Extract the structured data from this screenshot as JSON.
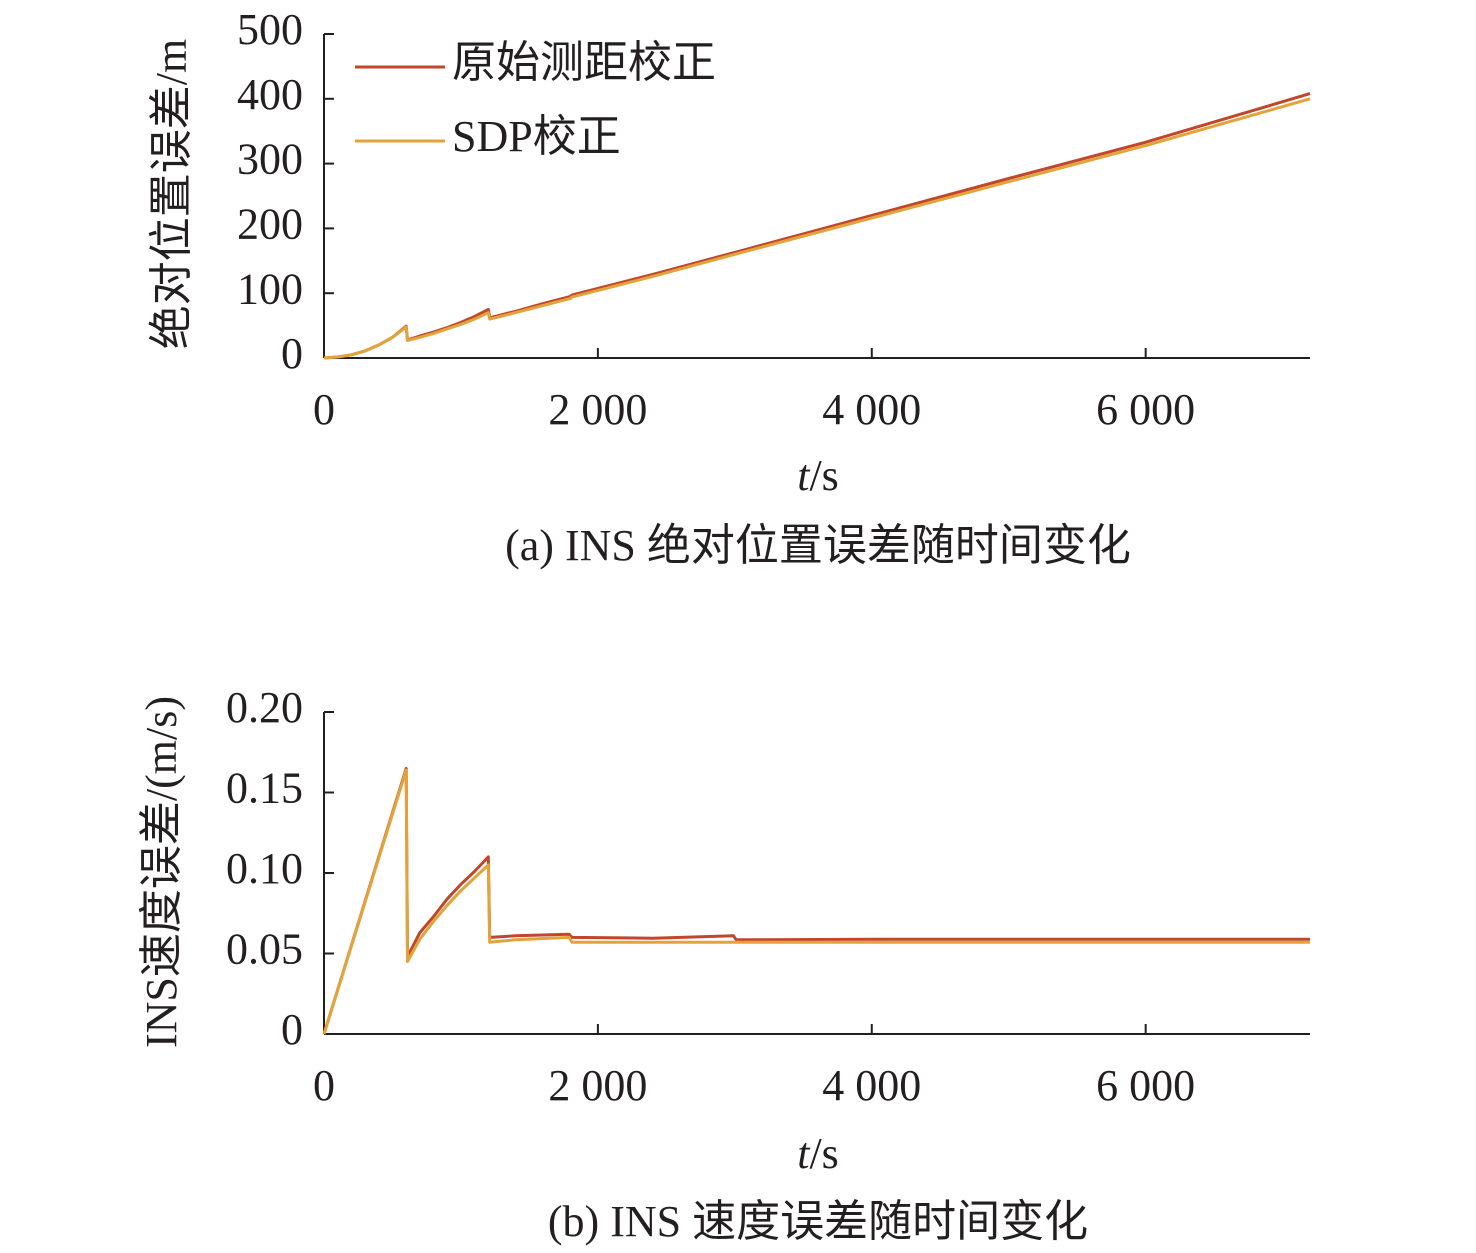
{
  "colors": {
    "raw_range_correction": "#c0462c",
    "sdp_correction": "#e3a33a",
    "axis": "#231f20"
  },
  "chart_data": [
    {
      "type": "line",
      "caption": "(a) INS 绝对位置误差随时间变化",
      "xlabel_italic": "t",
      "xlabel_unit": "/s",
      "ylabel": "绝对位置误差/m",
      "xlim": [
        0,
        7200
      ],
      "ylim": [
        0,
        500
      ],
      "xticks": [
        0,
        2000,
        4000,
        6000
      ],
      "xtick_labels": [
        "0",
        "2 000",
        "4 000",
        "6 000"
      ],
      "yticks": [
        0,
        100,
        200,
        300,
        400,
        500
      ],
      "ytick_labels": [
        "0",
        "100",
        "200",
        "300",
        "400",
        "500"
      ],
      "legend": {
        "position": "top-left",
        "entries": [
          "原始测距校正",
          "SDP校正"
        ]
      },
      "series": [
        {
          "name": "原始测距校正",
          "color": "#c0462c",
          "x": [
            0,
            100,
            200,
            300,
            400,
            500,
            600,
            610,
            700,
            800,
            900,
            1000,
            1100,
            1200,
            1210,
            1400,
            1600,
            1800,
            1810,
            2400,
            3000,
            4000,
            5000,
            6000,
            7200
          ],
          "y": [
            0,
            1.5,
            5,
            11,
            20,
            32,
            49,
            28,
            34,
            40,
            47,
            55,
            64,
            75,
            62,
            72,
            84,
            95,
            97,
            129,
            163,
            220,
            277,
            333,
            408
          ]
        },
        {
          "name": "SDP校正",
          "color": "#e3a33a",
          "x": [
            0,
            100,
            200,
            300,
            400,
            500,
            600,
            610,
            700,
            800,
            900,
            1000,
            1100,
            1200,
            1210,
            1400,
            1600,
            1800,
            1810,
            2400,
            3000,
            4000,
            5000,
            6000,
            7200
          ],
          "y": [
            0,
            1.5,
            5,
            11,
            20,
            32,
            48,
            27,
            32,
            38,
            45,
            52,
            60,
            70,
            60,
            70,
            81,
            92,
            94,
            126,
            160,
            216,
            272,
            328,
            400
          ]
        }
      ]
    },
    {
      "type": "line",
      "caption": "(b) INS 速度误差随时间变化",
      "xlabel_italic": "t",
      "xlabel_unit": "/s",
      "ylabel": "INS速度误差/(m/s)",
      "xlim": [
        0,
        7200
      ],
      "ylim": [
        0,
        0.2
      ],
      "xticks": [
        0,
        2000,
        4000,
        6000
      ],
      "xtick_labels": [
        "0",
        "2 000",
        "4 000",
        "6 000"
      ],
      "yticks": [
        0,
        0.05,
        0.1,
        0.15,
        0.2
      ],
      "ytick_labels": [
        "0",
        "0.05",
        "0.10",
        "0.15",
        "0.20"
      ],
      "series": [
        {
          "name": "原始测距校正",
          "color": "#c0462c",
          "x": [
            0,
            600,
            610,
            700,
            800,
            900,
            1000,
            1100,
            1200,
            1210,
            1400,
            1790,
            1810,
            2400,
            2990,
            3010,
            4000,
            5000,
            6000,
            7200
          ],
          "y": [
            0,
            0.165,
            0.048,
            0.063,
            0.073,
            0.084,
            0.093,
            0.101,
            0.11,
            0.06,
            0.061,
            0.062,
            0.06,
            0.0595,
            0.061,
            0.0585,
            0.0588,
            0.0588,
            0.0588,
            0.0588
          ]
        },
        {
          "name": "SDP校正",
          "color": "#e3a33a",
          "x": [
            0,
            600,
            610,
            700,
            800,
            900,
            1000,
            1100,
            1200,
            1210,
            1400,
            1790,
            1810,
            2400,
            3000,
            4000,
            5000,
            6000,
            7200
          ],
          "y": [
            0,
            0.164,
            0.045,
            0.059,
            0.07,
            0.08,
            0.089,
            0.097,
            0.105,
            0.057,
            0.0585,
            0.06,
            0.057,
            0.057,
            0.057,
            0.057,
            0.057,
            0.057,
            0.057
          ]
        }
      ]
    }
  ]
}
